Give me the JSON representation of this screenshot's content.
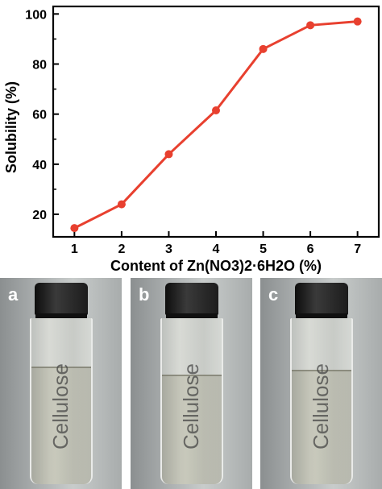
{
  "chart_data": {
    "type": "line",
    "xlabel": "Content of Zn(NO3)2·6H2O (%)",
    "ylabel": "Solubility (%)",
    "x": [
      1,
      2,
      3,
      4,
      5,
      6,
      7
    ],
    "series": [
      {
        "values": [
          14.5,
          24,
          44,
          61.5,
          86,
          95.5,
          97
        ]
      }
    ],
    "xlim": [
      0.55,
      7.45
    ],
    "ylim": [
      11,
      103
    ],
    "xticks": [
      "1",
      "2",
      "3",
      "4",
      "5",
      "6",
      "7"
    ],
    "yticks": [
      "20",
      "40",
      "60",
      "80",
      "100"
    ],
    "line_color": "#e8402f",
    "grid": false
  },
  "panels": [
    {
      "label": "a",
      "vial_text": "Cellulose"
    },
    {
      "label": "b",
      "vial_text": "Cellulose"
    },
    {
      "label": "c",
      "vial_text": "Cellulose"
    }
  ]
}
